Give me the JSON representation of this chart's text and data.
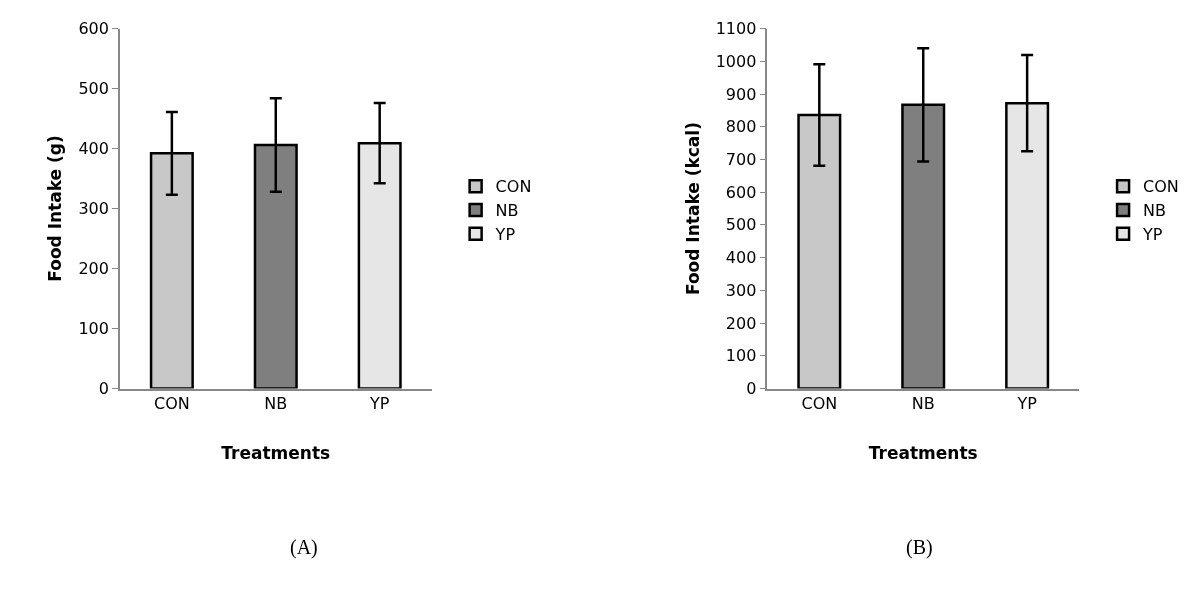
{
  "chart_data": [
    {
      "type": "bar",
      "xlabel": "Treatments",
      "ylabel": "Food Intake (g)",
      "categories": [
        "CON",
        "NB",
        "YP"
      ],
      "ylim": [
        0,
        600
      ],
      "yticks": [
        0,
        100,
        200,
        300,
        400,
        500,
        600
      ],
      "legend": "right",
      "annotations": [
        "(A)"
      ],
      "series": [
        {
          "name": "CON",
          "color": "#c8c8c8",
          "values": [
            392,
            null,
            null
          ],
          "errors": [
            69,
            null,
            null
          ]
        },
        {
          "name": "NB",
          "color": "#7f7f7f",
          "values": [
            null,
            406,
            null
          ],
          "errors": [
            null,
            78,
            null
          ]
        },
        {
          "name": "YP",
          "color": "#e6e6e6",
          "values": [
            null,
            null,
            409
          ],
          "errors": [
            null,
            null,
            67
          ]
        }
      ]
    },
    {
      "type": "bar",
      "xlabel": "Treatments",
      "ylabel": "Food Intake (kcal)",
      "categories": [
        "CON",
        "NB",
        "YP"
      ],
      "ylim": [
        0,
        1100
      ],
      "yticks": [
        0,
        100,
        200,
        300,
        400,
        500,
        600,
        700,
        800,
        900,
        1000,
        1100
      ],
      "legend": "right",
      "annotations": [
        "(B)"
      ],
      "series": [
        {
          "name": "CON",
          "color": "#c8c8c8",
          "values": [
            836,
            null,
            null
          ],
          "errors": [
            155,
            null,
            null
          ]
        },
        {
          "name": "NB",
          "color": "#7f7f7f",
          "values": [
            null,
            867,
            null
          ],
          "errors": [
            null,
            173,
            null
          ]
        },
        {
          "name": "YP",
          "color": "#e6e6e6",
          "values": [
            null,
            null,
            872
          ],
          "errors": [
            null,
            null,
            147
          ]
        }
      ]
    }
  ]
}
